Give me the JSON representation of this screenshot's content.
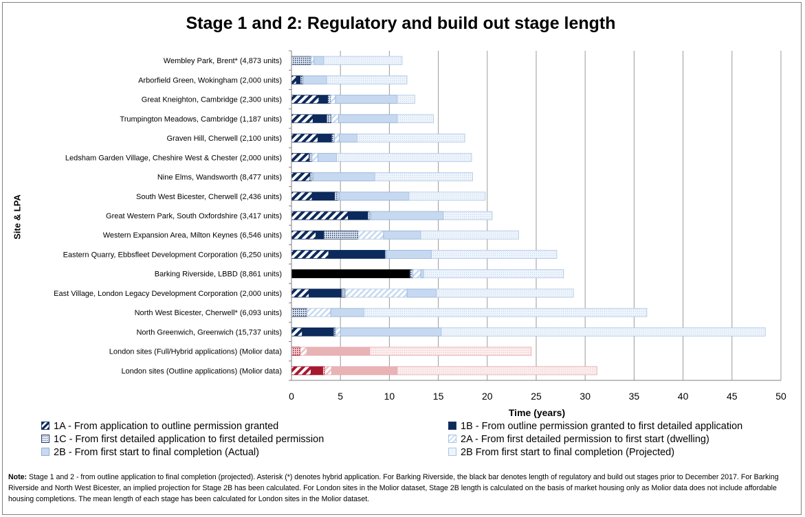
{
  "chart_data": {
    "type": "bar",
    "orientation": "horizontal",
    "stacked": true,
    "title": "Stage 1 and 2: Regulatory and build out stage length",
    "xlabel": "Time (years)",
    "ylabel": "Site & LPA",
    "xlim": [
      0,
      50
    ],
    "xticks": [
      "0",
      "5",
      "10",
      "15",
      "20",
      "25",
      "30",
      "35",
      "40",
      "45",
      "50"
    ],
    "grid": "vertical",
    "legend_position": "bottom",
    "categories": [
      "Wembley Park, Brent* (4,873 units)",
      "Arborfield Green, Wokingham (2,000 units)",
      "Great Kneighton, Cambridge (2,300 units)",
      "Trumpington Meadows, Cambridge (1,187 units)",
      "Graven Hill, Cherwell (2,100 units)",
      "Ledsham Garden Village, Cheshire West & Chester (2,000 units)",
      "Nine Elms, Wandsworth (8,477 units)",
      "South West Bicester, Cherwell (2,436 units)",
      "Great Western Park, South Oxfordshire (3,417 units)",
      "Western Expansion Area, Milton Keynes (6,546 units)",
      "Eastern Quarry, Ebbsfleet Development Corporation (6,250 units)",
      "Barking Riverside, LBBD (8,861 units)",
      "East Village, London Legacy Development Corporation (2,000 units)",
      "North West Bicester, Cherwell* (6,093 units)",
      "North Greenwich, Greenwich (15,737 units)",
      "London sites (Full/Hybrid applications) (Molior data)",
      "London sites (Outline applications) (Molior data)"
    ],
    "series": [
      {
        "name": "1A - From application to outline permission granted",
        "values": [
          0,
          0.5,
          2.8,
          2.2,
          2.7,
          1.8,
          1.9,
          2.1,
          5.8,
          2.5,
          3.8,
          0,
          1.8,
          0,
          1.1,
          0,
          2.0
        ]
      },
      {
        "name": "1B - From outline permission granted to first detailed application",
        "values": [
          0,
          0.4,
          0.9,
          1.4,
          1.4,
          0,
          0,
          2.3,
          2.0,
          0.8,
          5.8,
          0,
          3.3,
          0,
          3.2,
          0,
          1.2
        ]
      },
      {
        "name": "1C - From first detailed application to first detailed permission",
        "values": [
          2.0,
          0.3,
          0.3,
          0.5,
          0.3,
          0.3,
          0.2,
          0.4,
          0.2,
          3.5,
          0,
          0.3,
          0.4,
          1.6,
          0.2,
          0.9,
          0.2
        ]
      },
      {
        "name": "2A - From first detailed permission to first start (dwelling)",
        "values": [
          0.3,
          0,
          0.5,
          0.7,
          0.5,
          0.6,
          0.1,
          0.1,
          0.1,
          2.6,
          0.1,
          0.8,
          6.3,
          2.4,
          0.5,
          0.7,
          0.7
        ]
      },
      {
        "name": "2B - From first start to final completion (Actual)",
        "values": [
          1.0,
          2.4,
          6.3,
          6.0,
          1.8,
          1.9,
          6.3,
          7.1,
          7.4,
          3.8,
          4.6,
          0.3,
          3.0,
          3.4,
          10.3,
          6.4,
          6.7
        ]
      },
      {
        "name": "2B From first start to final completion (Projected)",
        "values": [
          8.0,
          8.2,
          1.8,
          3.7,
          11.0,
          13.8,
          10.0,
          7.8,
          5.0,
          10.0,
          12.8,
          14.3,
          14.0,
          28.9,
          33.1,
          16.5,
          20.4
        ]
      },
      {
        "name": "Barking Riverside regulatory and build out stages prior to December 2017",
        "values": [
          0,
          0,
          0,
          0,
          0,
          0,
          0,
          0,
          0,
          0,
          0,
          12.1,
          0,
          0,
          0,
          0,
          0
        ]
      }
    ],
    "legend": [
      "1A - From application to outline permission granted",
      "1B - From outline permission granted to first detailed application",
      "1C - From first detailed application to first detailed permission",
      "2A - From first detailed permission to first start (dwelling)",
      "2B - From first start to final completion (Actual)",
      "2B From first start to final completion (Projected)"
    ],
    "colors": {
      "dark_navy": "#0d2a5c",
      "light_blue": "#c6d9f0",
      "pale_blue": "#e8f1fb",
      "outline_blue": "#8eaed6",
      "london_red": "#a5182e",
      "london_pink": "#e9b3b6",
      "london_pale_pink": "#f9e6e6",
      "barking_black": "#000000",
      "grid": "#9a9a9a"
    }
  },
  "note": {
    "label": "Note:",
    "text": "Stage 1 and 2 - from outline application to final completion (projected). Asterisk (*) denotes hybrid application. For Barking Riverside, the black bar denotes length of regulatory and build out stages prior to December 2017. For Barking Riverside and North West Bicester, an implied projection for Stage 2B has been calculated. For London sites in the Molior dataset, Stage 2B length is calculated on the basis of market housing only as Molior data does not include affordable housing completions. The mean length of each stage has been calculated for London sites in the Molior dataset."
  }
}
